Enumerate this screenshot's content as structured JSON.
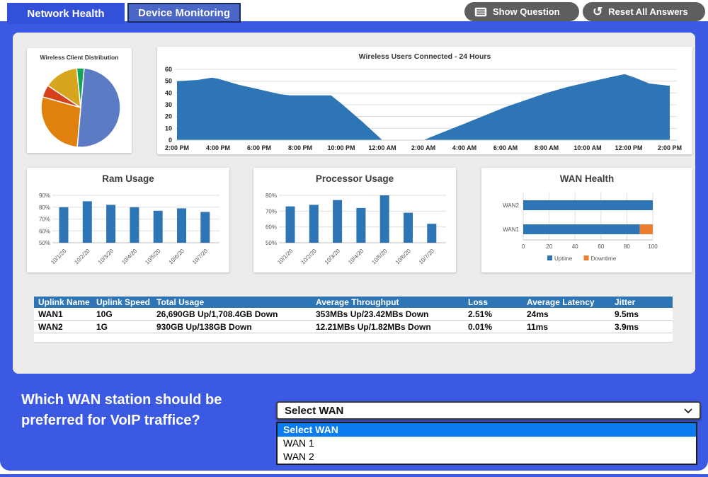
{
  "tabs": [
    {
      "label": "Network Health",
      "active": true
    },
    {
      "label": "Device Monitoring",
      "active": false
    }
  ],
  "toolbar": {
    "show_question_label": "Show Question",
    "reset_label": "Reset All Answers"
  },
  "question": {
    "line1": "Which WAN station should be",
    "line2": "preferred for VoIP traffice?"
  },
  "dropdown": {
    "value": "Select WAN",
    "options": [
      "Select WAN",
      "WAN 1",
      "WAN 2"
    ],
    "highlighted_index": 0
  },
  "table": {
    "headers": [
      "Uplink Name",
      "Uplink Speed",
      "Total Usage",
      "Average Throughput",
      "Loss",
      "Average Latency",
      "Jitter"
    ],
    "rows": [
      [
        "WAN1",
        "10G",
        "26,690GB Up/1,708.4GB Down",
        "353MBs Up/23.42MBs Down",
        "2.51%",
        "24ms",
        "9.5ms"
      ],
      [
        "WAN2",
        "1G",
        "930GB Up/138GB Down",
        "12.21MBs Up/1.82MBs Down",
        "0.01%",
        "11ms",
        "3.9ms"
      ]
    ]
  },
  "chart_data": [
    {
      "type": "pie",
      "title": "Wireless Client Distribution",
      "start_angle": 5,
      "slices": [
        {
          "value": 50,
          "color": "#5B7CC4"
        },
        {
          "value": 28,
          "color": "#E0810E"
        },
        {
          "value": 5,
          "color": "#D6411C"
        },
        {
          "value": 14,
          "color": "#D8A61E"
        },
        {
          "value": 3,
          "color": "#12A455"
        }
      ]
    },
    {
      "type": "area",
      "title": "Wireless Users Connected - 24 Hours",
      "color": "#2E75B6",
      "x_labels": [
        "2:00 PM",
        "4:00 PM",
        "6:00 PM",
        "8:00 PM",
        "10:00 PM",
        "12:00 AM",
        "2:00 AM",
        "4:00 AM",
        "6:00 AM",
        "8:00 AM",
        "10:00 AM",
        "12:00 PM",
        "2:00 PM"
      ],
      "ylim": [
        0,
        60
      ],
      "yticks": [
        0,
        10,
        20,
        30,
        40,
        50,
        60
      ],
      "points": [
        [
          0,
          50
        ],
        [
          1,
          51
        ],
        [
          1.7,
          53
        ],
        [
          2,
          52
        ],
        [
          3,
          47
        ],
        [
          4,
          43
        ],
        [
          5,
          39
        ],
        [
          5.5,
          38
        ],
        [
          7.5,
          38
        ],
        [
          8,
          31
        ],
        [
          9,
          16
        ],
        [
          10,
          0
        ],
        [
          12,
          0
        ],
        [
          13,
          7
        ],
        [
          14,
          14
        ],
        [
          15,
          21
        ],
        [
          16,
          28
        ],
        [
          17,
          34
        ],
        [
          18,
          40
        ],
        [
          19,
          45
        ],
        [
          20,
          49
        ],
        [
          21,
          53
        ],
        [
          21.8,
          56
        ],
        [
          22.3,
          53
        ],
        [
          23,
          48
        ],
        [
          24,
          46
        ]
      ]
    },
    {
      "type": "bar",
      "title": "Ram Usage",
      "color": "#2E75B6",
      "categories": [
        "10/1/20",
        "10/2/20",
        "10/3/20",
        "10/4/20",
        "10/5/20",
        "10/6/20",
        "10/7/20"
      ],
      "values": [
        80,
        85,
        82,
        80,
        77,
        79,
        76
      ],
      "ylim": [
        50,
        90
      ],
      "yticks": [
        50,
        60,
        70,
        80,
        90
      ],
      "ytick_suffix": "%"
    },
    {
      "type": "bar",
      "title": "Processor Usage",
      "color": "#2E75B6",
      "categories": [
        "10/1/20",
        "10/2/20",
        "10/3/20",
        "10/4/20",
        "10/5/20",
        "10/6/20",
        "10/7/20"
      ],
      "values": [
        73,
        74,
        77,
        72,
        80,
        69,
        62
      ],
      "ylim": [
        50,
        80
      ],
      "yticks": [
        50,
        60,
        70,
        80
      ],
      "ytick_suffix": "%"
    },
    {
      "type": "hbar-stacked",
      "title": "WAN Health",
      "categories": [
        "WAN2",
        "WAN1"
      ],
      "series": [
        {
          "name": "Uptime",
          "color": "#2E75B6",
          "values": [
            100,
            90
          ]
        },
        {
          "name": "Downtime",
          "color": "#ED7D31",
          "values": [
            0,
            10
          ]
        }
      ],
      "xlim": [
        0,
        100
      ],
      "xticks": [
        0,
        20,
        40,
        60,
        80,
        100
      ]
    }
  ],
  "colors": {
    "page_blue": "#3C59E3",
    "tab_active": "#3350D8",
    "tab_inactive": "#4A66C6",
    "tab_border": "#1C2A5E",
    "button_gray": "#605E5C",
    "panel_gray": "#EDECEB",
    "table_header_blue": "#2E75B6",
    "highlight_blue": "#0A7CF0",
    "chart_blue": "#2E75B6",
    "downtime_orange": "#ED7D31"
  }
}
